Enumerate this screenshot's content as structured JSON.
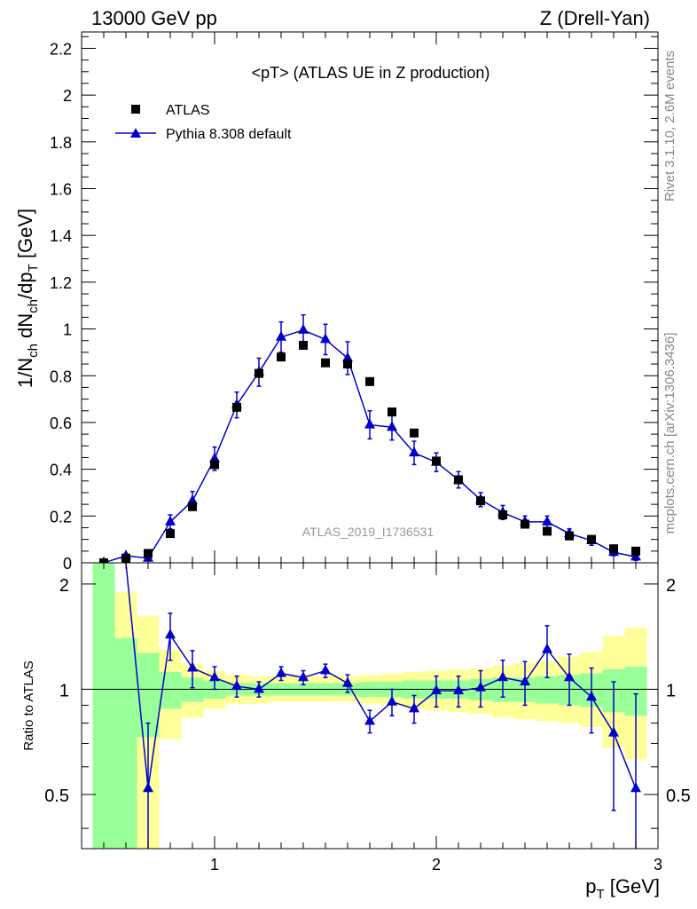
{
  "header": {
    "left": "13000 GeV pp",
    "right": "Z (Drell-Yan)"
  },
  "side_labels": {
    "rivet": "Rivet 3.1.10,  2.6M events",
    "mcplots": "mcplots.cern.ch [arXiv:1306.3436]"
  },
  "colors": {
    "data": "#000000",
    "mc": "#0000cc",
    "band_inner": "#99ff99",
    "band_outer": "#ffff99"
  },
  "chart_data": [
    {
      "type": "scatter",
      "title": "<pT> (ATLAS UE in Z production)",
      "xlabel": "pT [GeV]",
      "ylabel": "1/Nch dNch/dpT [GeV]",
      "xlim": [
        0.4,
        3.0
      ],
      "ylim": [
        0,
        2.27
      ],
      "yticks": [
        0,
        0.2,
        0.4,
        0.6,
        0.8,
        1,
        1.2,
        1.4,
        1.6,
        1.8,
        2,
        2.2
      ],
      "ytick_labels": [
        "0",
        "0.2",
        "0.4",
        "0.6",
        "0.8",
        "1",
        "1.2",
        "1.4",
        "1.6",
        "1.8",
        "2",
        "2.2"
      ],
      "legend": [
        "ATLAS",
        "Pythia 8.308 default"
      ],
      "legend_position": "top-left",
      "watermark": "ATLAS_2019_I1736531",
      "series": [
        {
          "name": "ATLAS",
          "marker": "square",
          "x": [
            0.5,
            0.6,
            0.7,
            0.8,
            0.9,
            1.0,
            1.1,
            1.2,
            1.3,
            1.4,
            1.5,
            1.6,
            1.7,
            1.8,
            1.9,
            2.0,
            2.1,
            2.2,
            2.3,
            2.4,
            2.5,
            2.6,
            2.7,
            2.8,
            2.9
          ],
          "y": [
            0.0,
            0.02,
            0.04,
            0.125,
            0.24,
            0.42,
            0.665,
            0.81,
            0.88,
            0.93,
            0.855,
            0.85,
            0.775,
            0.645,
            0.555,
            0.435,
            0.355,
            0.265,
            0.205,
            0.165,
            0.135,
            0.115,
            0.1,
            0.06,
            0.05
          ]
        },
        {
          "name": "Pythia 8.308 default",
          "marker": "triangle",
          "x": [
            0.5,
            0.6,
            0.7,
            0.8,
            0.9,
            1.0,
            1.1,
            1.2,
            1.3,
            1.4,
            1.5,
            1.6,
            1.7,
            1.8,
            1.9,
            2.0,
            2.1,
            2.2,
            2.3,
            2.4,
            2.5,
            2.6,
            2.7,
            2.8,
            2.9
          ],
          "y": [
            0.0,
            0.03,
            0.02,
            0.175,
            0.265,
            0.445,
            0.675,
            0.815,
            0.965,
            0.995,
            0.955,
            0.875,
            0.59,
            0.58,
            0.47,
            0.43,
            0.355,
            0.27,
            0.215,
            0.175,
            0.175,
            0.125,
            0.095,
            0.045,
            0.025
          ],
          "err": [
            0.0,
            0.01,
            0.01,
            0.03,
            0.04,
            0.05,
            0.055,
            0.06,
            0.065,
            0.065,
            0.065,
            0.07,
            0.06,
            0.055,
            0.05,
            0.04,
            0.035,
            0.03,
            0.03,
            0.025,
            0.025,
            0.02,
            0.02,
            0.015,
            0.015
          ]
        }
      ]
    },
    {
      "type": "line",
      "ylabel": "Ratio to ATLAS",
      "xlabel": "pT [GeV]",
      "xlim": [
        0.4,
        3.0
      ],
      "ylim": [
        0.35,
        2.3
      ],
      "yticks": [
        0.5,
        1,
        2
      ],
      "ytick_labels": [
        "0.5",
        "1",
        "2"
      ],
      "xticks": [
        1,
        2,
        3
      ],
      "xtick_labels": [
        "1",
        "2",
        "3"
      ],
      "bins": [
        0.45,
        0.55,
        0.65,
        0.75,
        0.85,
        0.95,
        1.05,
        1.15,
        1.25,
        1.35,
        1.45,
        1.55,
        1.65,
        1.75,
        1.85,
        1.95,
        2.05,
        2.15,
        2.25,
        2.35,
        2.45,
        2.55,
        2.65,
        2.75,
        2.85,
        2.95
      ],
      "band_inner_lo": [
        0.35,
        0.35,
        0.73,
        0.88,
        0.92,
        0.94,
        0.96,
        0.96,
        0.96,
        0.96,
        0.96,
        0.96,
        0.95,
        0.95,
        0.94,
        0.94,
        0.94,
        0.93,
        0.92,
        0.92,
        0.91,
        0.9,
        0.89,
        0.86,
        0.84
      ],
      "band_inner_hi": [
        2.3,
        1.4,
        1.27,
        1.12,
        1.08,
        1.06,
        1.04,
        1.04,
        1.04,
        1.04,
        1.04,
        1.04,
        1.05,
        1.05,
        1.06,
        1.06,
        1.06,
        1.07,
        1.08,
        1.08,
        1.09,
        1.1,
        1.11,
        1.14,
        1.16
      ],
      "band_outer_lo": [
        0.35,
        0.35,
        0.35,
        0.72,
        0.83,
        0.88,
        0.91,
        0.91,
        0.92,
        0.92,
        0.92,
        0.92,
        0.91,
        0.9,
        0.88,
        0.87,
        0.86,
        0.85,
        0.83,
        0.82,
        0.81,
        0.8,
        0.78,
        0.68,
        0.63
      ],
      "band_outer_hi": [
        2.3,
        1.9,
        1.62,
        1.3,
        1.18,
        1.13,
        1.1,
        1.09,
        1.09,
        1.09,
        1.09,
        1.09,
        1.1,
        1.11,
        1.12,
        1.13,
        1.14,
        1.15,
        1.17,
        1.19,
        1.21,
        1.24,
        1.28,
        1.42,
        1.5
      ],
      "series": [
        {
          "name": "Pythia 8.308 default / ATLAS",
          "x": [
            0.7,
            0.8,
            0.9,
            1.0,
            1.1,
            1.2,
            1.3,
            1.4,
            1.5,
            1.6,
            1.7,
            1.8,
            1.9,
            2.0,
            2.1,
            2.2,
            2.3,
            2.4,
            2.5,
            2.6,
            2.7,
            2.8,
            2.9
          ],
          "y": [
            0.52,
            1.43,
            1.15,
            1.08,
            1.02,
            1.0,
            1.11,
            1.08,
            1.13,
            1.04,
            0.81,
            0.92,
            0.88,
            0.99,
            0.99,
            1.01,
            1.08,
            1.05,
            1.3,
            1.08,
            0.95,
            0.75,
            0.52
          ],
          "err": [
            0.28,
            0.22,
            0.14,
            0.08,
            0.07,
            0.05,
            0.05,
            0.05,
            0.05,
            0.06,
            0.06,
            0.08,
            0.08,
            0.1,
            0.1,
            0.12,
            0.13,
            0.15,
            0.22,
            0.18,
            0.2,
            0.3,
            0.45
          ],
          "line_start": {
            "x": 0.6,
            "y": 2.3
          }
        }
      ]
    }
  ]
}
